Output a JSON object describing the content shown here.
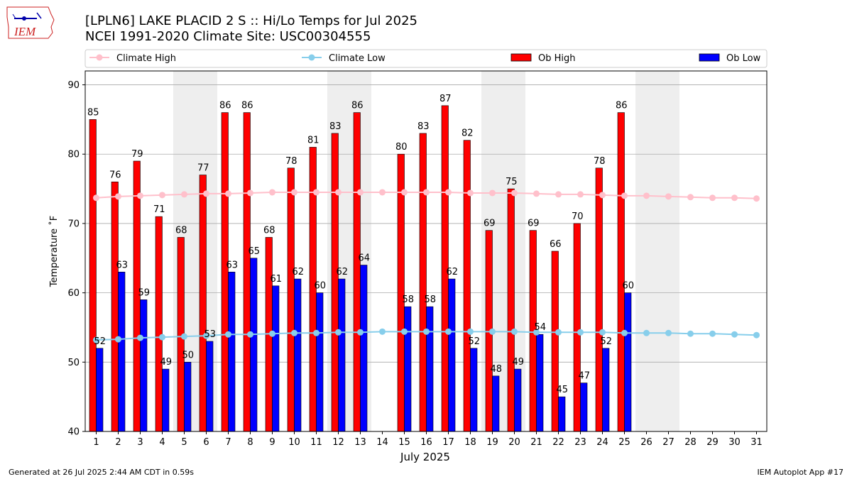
{
  "header": {
    "logo_text": "IEM",
    "title_line1": "[LPLN6] LAKE PLACID 2 S :: Hi/Lo Temps for Jul 2025",
    "title_line2": "NCEI 1991-2020 Climate Site: USC00304555"
  },
  "footer": {
    "generated": "Generated at 26 Jul 2025 2:44 AM CDT in 0.59s",
    "app": "IEM Autoplot App #17"
  },
  "colors": {
    "ob_high": "#ff0000",
    "ob_low": "#0000ff",
    "climate_high": "#ffc0cb",
    "climate_low": "#87ceeb",
    "weekend_shade": "#eeeeee",
    "grid": "#aaaaaa"
  },
  "chart_data": {
    "type": "bar",
    "title": "[LPLN6] LAKE PLACID 2 S :: Hi/Lo Temps for Jul 2025",
    "subtitle": "NCEI 1991-2020 Climate Site: USC00304555",
    "xlabel": "July 2025",
    "ylabel": "Temperature ˚F",
    "ylim": [
      40,
      92
    ],
    "yticks": [
      40,
      50,
      60,
      70,
      80,
      90
    ],
    "grid": true,
    "legend_position": "top",
    "categories": [
      "1",
      "2",
      "3",
      "4",
      "5",
      "6",
      "7",
      "8",
      "9",
      "10",
      "11",
      "12",
      "13",
      "14",
      "15",
      "16",
      "17",
      "18",
      "19",
      "20",
      "21",
      "22",
      "23",
      "24",
      "25",
      "26",
      "27",
      "28",
      "29",
      "30",
      "31"
    ],
    "weekend_spans": [
      [
        5,
        6
      ],
      [
        12,
        13
      ],
      [
        19,
        20
      ],
      [
        26,
        27
      ]
    ],
    "series": [
      {
        "name": "Ob High",
        "kind": "bar",
        "values": [
          85,
          76,
          79,
          71,
          68,
          77,
          86,
          86,
          68,
          78,
          81,
          83,
          86,
          null,
          80,
          83,
          87,
          82,
          69,
          75,
          69,
          66,
          70,
          78,
          86,
          null,
          null,
          null,
          null,
          null,
          null
        ]
      },
      {
        "name": "Ob Low",
        "kind": "bar",
        "values": [
          52,
          63,
          59,
          49,
          50,
          53,
          63,
          65,
          61,
          62,
          60,
          62,
          64,
          null,
          58,
          58,
          62,
          52,
          48,
          49,
          54,
          45,
          47,
          52,
          60,
          null,
          null,
          null,
          null,
          null,
          null
        ]
      },
      {
        "name": "Climate High",
        "kind": "line",
        "values": [
          73.7,
          73.9,
          74.0,
          74.1,
          74.2,
          74.3,
          74.3,
          74.4,
          74.5,
          74.5,
          74.5,
          74.5,
          74.5,
          74.5,
          74.5,
          74.5,
          74.5,
          74.4,
          74.4,
          74.4,
          74.3,
          74.2,
          74.2,
          74.1,
          74.0,
          74.0,
          73.9,
          73.8,
          73.7,
          73.7,
          73.6
        ]
      },
      {
        "name": "Climate Low",
        "kind": "line",
        "values": [
          53.2,
          53.3,
          53.5,
          53.6,
          53.7,
          53.8,
          54.0,
          54.0,
          54.1,
          54.2,
          54.2,
          54.3,
          54.3,
          54.4,
          54.4,
          54.4,
          54.4,
          54.4,
          54.4,
          54.4,
          54.3,
          54.3,
          54.3,
          54.3,
          54.2,
          54.2,
          54.2,
          54.1,
          54.1,
          54.0,
          53.9
        ]
      }
    ]
  }
}
